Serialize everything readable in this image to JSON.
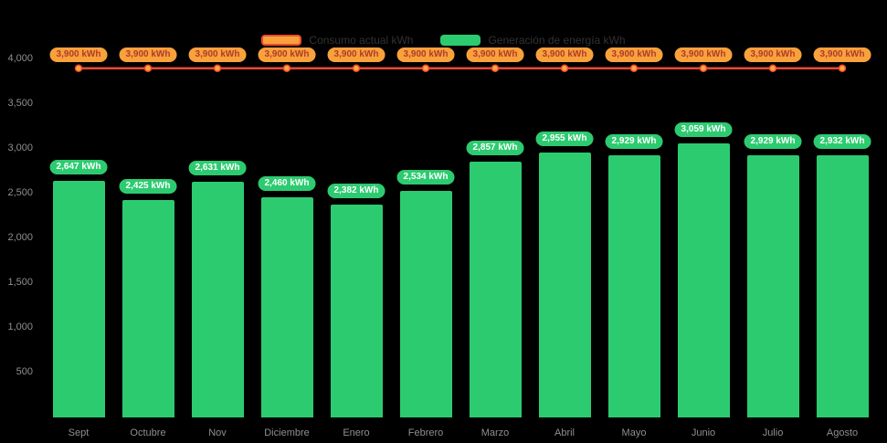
{
  "colors": {
    "background": "#000000",
    "bar": "#2dcb70",
    "bar_badge_bg": "#2dcb70",
    "bar_badge_text": "#ffffff",
    "line": "#f1492f",
    "line_dot_fill": "#ffa83d",
    "line_badge_bg": "#f9a13b",
    "line_badge_text": "#b03a2e",
    "axis_text": "#8f8f8f",
    "legend_text": "#333333"
  },
  "legend": {
    "consumption_label": "Consumo actual kWh",
    "generation_label": "Generación de energía kWh"
  },
  "chart_data": {
    "type": "bar",
    "subtype": "bar-with-line-overlay",
    "legend_position": "top",
    "grid": false,
    "categories": [
      "Sept",
      "Octubre",
      "Nov",
      "Diciembre",
      "Enero",
      "Febrero",
      "Marzo",
      "Abril",
      "Mayo",
      "Junio",
      "Julio",
      "Agosto"
    ],
    "series": [
      {
        "name": "Generación de energía kWh",
        "type": "bar",
        "values": [
          2647,
          2425,
          2631,
          2460,
          2382,
          2534,
          2857,
          2955,
          2929,
          3059,
          2929,
          2932
        ]
      },
      {
        "name": "Consumo actual kWh",
        "type": "line",
        "values": [
          3900,
          3900,
          3900,
          3900,
          3900,
          3900,
          3900,
          3900,
          3900,
          3900,
          3900,
          3900
        ]
      }
    ],
    "bar_labels": [
      "2,647 kWh",
      "2,425 kWh",
      "2,631 kWh",
      "2,460 kWh",
      "2,382 kWh",
      "2,534 kWh",
      "2,857 kWh",
      "2,955 kWh",
      "2,929 kWh",
      "3,059 kWh",
      "2,929 kWh",
      "2,932 kWh"
    ],
    "line_labels": [
      "3,900 kWh",
      "3,900 kWh",
      "3,900 kWh",
      "3,900 kWh",
      "3,900 kWh",
      "3,900 kWh",
      "3,900 kWh",
      "3,900 kWh",
      "3,900 kWh",
      "3,900 kWh",
      "3,900 kWh",
      "3,900 kWh"
    ],
    "yticks": [
      "4,000",
      "3,500",
      "3,000",
      "2,500",
      "2,000",
      "1,500",
      "1,000",
      "500"
    ],
    "ylim": [
      0,
      4083
    ],
    "xlabel": "",
    "ylabel": ""
  }
}
